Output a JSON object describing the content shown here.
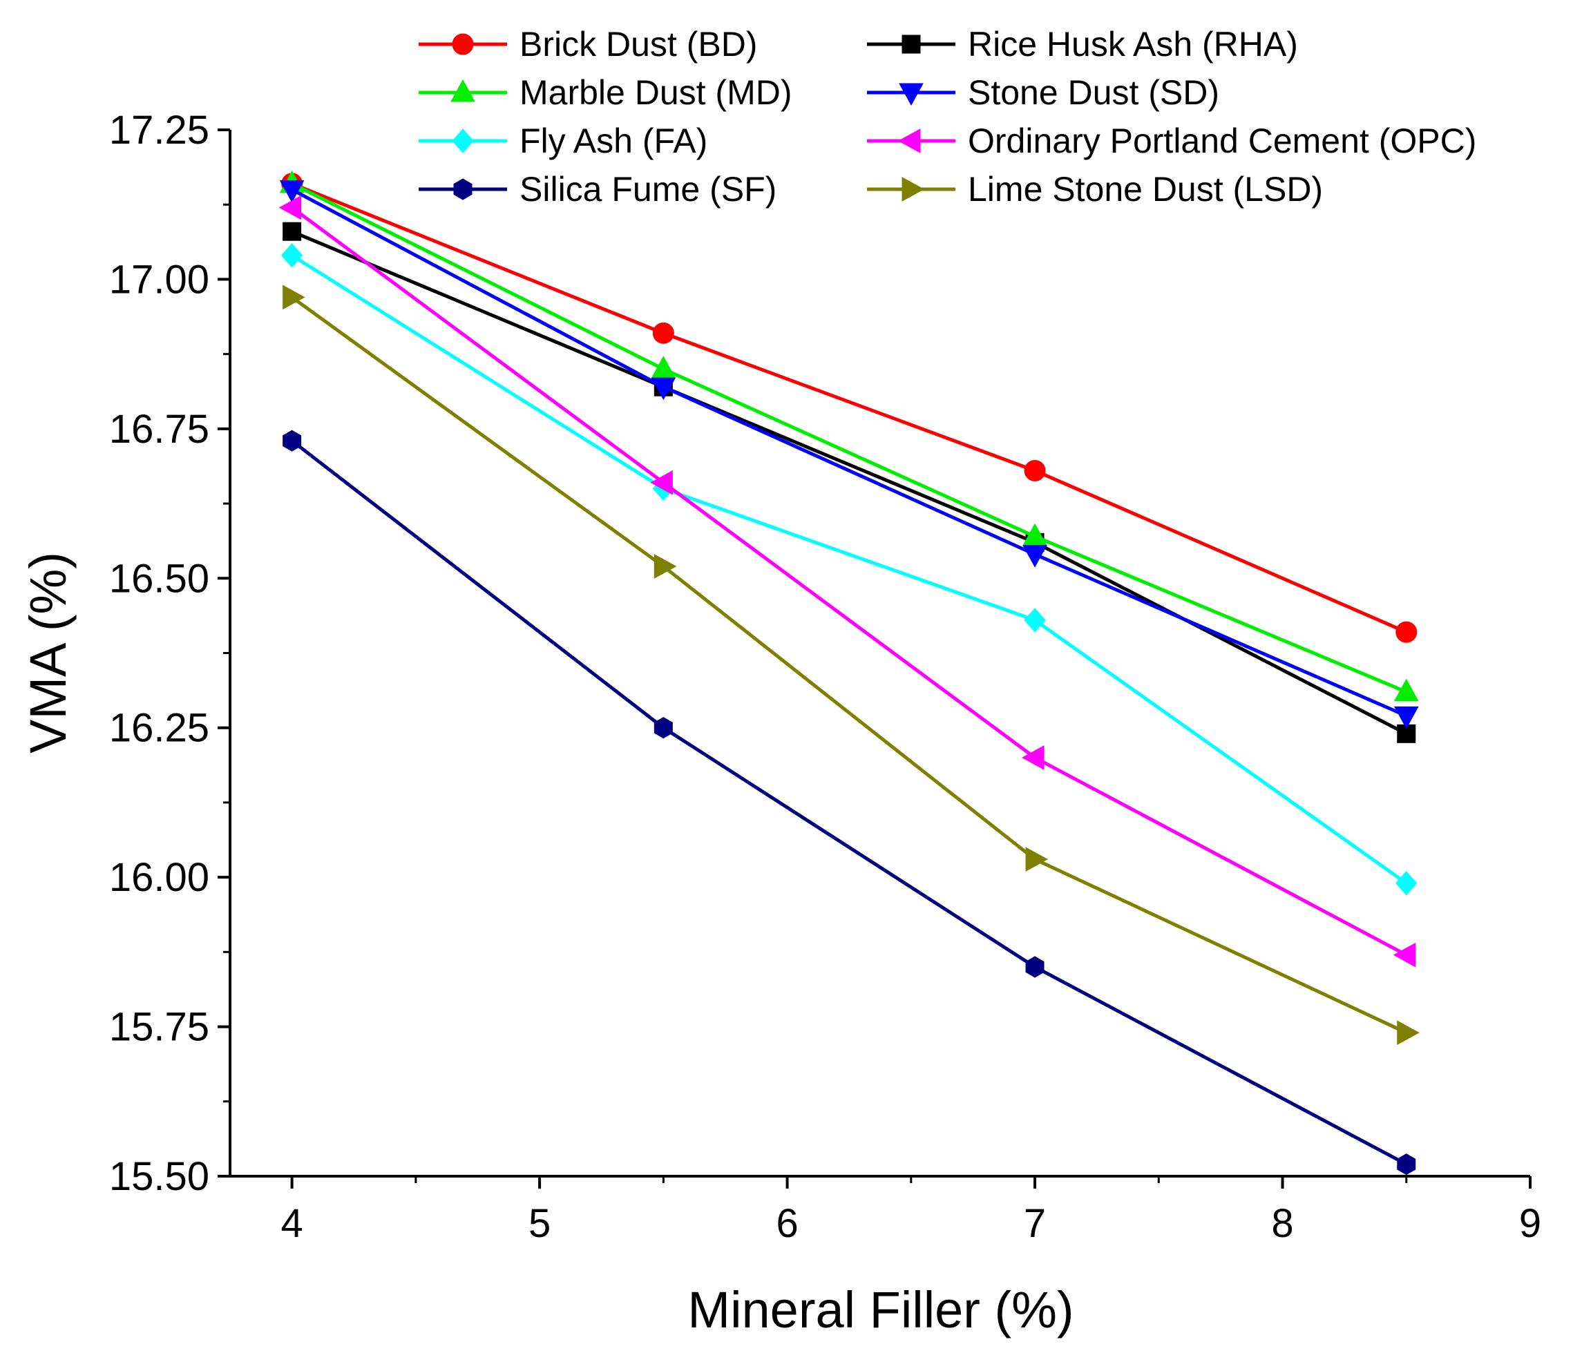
{
  "chart_data": {
    "type": "line",
    "xlabel": "Mineral Filler (%)",
    "ylabel": "VMA (%)",
    "xlim": [
      3.75,
      9
    ],
    "ylim": [
      15.5,
      17.25
    ],
    "x_ticks": [
      4,
      5,
      6,
      7,
      8,
      9
    ],
    "x_tick_labels": [
      "4",
      "5",
      "6",
      "7",
      "8",
      "9"
    ],
    "y_ticks": [
      15.5,
      15.75,
      16.0,
      16.25,
      16.5,
      16.75,
      17.0,
      17.25
    ],
    "y_tick_labels": [
      "15.50",
      "15.75",
      "16.00",
      "16.25",
      "16.50",
      "16.75",
      "17.00",
      "17.25"
    ],
    "grid": false,
    "legend_position": "top",
    "x": [
      4,
      5.5,
      7,
      8.5
    ],
    "series": [
      {
        "name": "Brick Dust (BD)",
        "color": "#ff0000",
        "marker": "circle",
        "values": [
          17.16,
          16.91,
          16.68,
          16.41
        ]
      },
      {
        "name": "Rice Husk Ash (RHA)",
        "color": "#000000",
        "marker": "square",
        "values": [
          17.08,
          16.82,
          16.56,
          16.24
        ]
      },
      {
        "name": "Marble Dust (MD)",
        "color": "#00ee00",
        "marker": "triangle-up",
        "values": [
          17.16,
          16.85,
          16.57,
          16.31
        ]
      },
      {
        "name": "Stone Dust (SD)",
        "color": "#0000ff",
        "marker": "triangle-down",
        "values": [
          17.15,
          16.82,
          16.54,
          16.27
        ]
      },
      {
        "name": "Fly Ash (FA)",
        "color": "#00ffff",
        "marker": "diamond",
        "values": [
          17.04,
          16.65,
          16.43,
          15.99
        ]
      },
      {
        "name": "Ordinary Portland Cement (OPC)",
        "color": "#ff00ff",
        "marker": "triangle-left",
        "values": [
          17.12,
          16.66,
          16.2,
          15.87
        ]
      },
      {
        "name": "Silica Fume (SF)",
        "color": "#000080",
        "marker": "hexagon",
        "values": [
          16.73,
          16.25,
          15.85,
          15.52
        ]
      },
      {
        "name": "Lime Stone Dust (LSD)",
        "color": "#808000",
        "marker": "triangle-right",
        "values": [
          16.97,
          16.52,
          16.03,
          15.74
        ]
      }
    ]
  }
}
